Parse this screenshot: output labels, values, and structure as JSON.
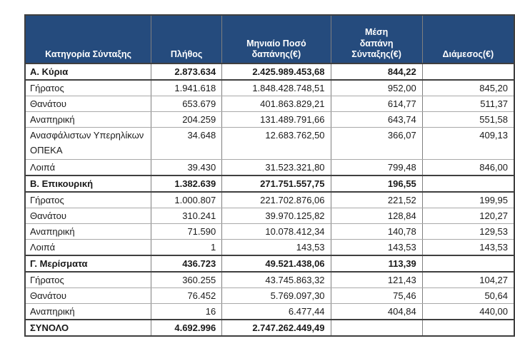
{
  "colors": {
    "header_bg": "#254b7d",
    "header_text": "#ffffff",
    "border_strong": "#3f3f3f"
  },
  "table": {
    "columns": [
      {
        "label": "Κατηγορία Σύνταξης"
      },
      {
        "label": "Πλήθος"
      },
      {
        "label": "Μηνιαίο Ποσό\nδαπάνης(€)"
      },
      {
        "label": "Μέση\nδαπάνη\nΣύνταξης(€)"
      },
      {
        "label": "Διάμεσος(€)"
      }
    ],
    "rows": [
      {
        "cells": [
          "Α. Κύρια",
          "2.873.634",
          "2.425.989.453,68",
          "844,22",
          ""
        ],
        "bold": true
      },
      {
        "cells": [
          "Γήρατος",
          "1.941.618",
          "1.848.428.748,51",
          "952,00",
          "845,20"
        ]
      },
      {
        "cells": [
          "Θανάτου",
          "653.679",
          "401.863.829,21",
          "614,77",
          "511,37"
        ]
      },
      {
        "cells": [
          "Αναπηρική",
          "204.259",
          "131.489.791,66",
          "643,74",
          "551,58"
        ]
      },
      {
        "cells": [
          "Ανασφάλιστων Υπερηλίκων ΟΠΕΚΑ",
          "34.648",
          "12.683.762,50",
          "366,07",
          "409,13"
        ],
        "tall": true
      },
      {
        "cells": [
          "Λοιπά",
          "39.430",
          "31.523.321,80",
          "799,48",
          "846,00"
        ]
      },
      {
        "cells": [
          "Β. Επικουρική",
          "1.382.639",
          "271.751.557,75",
          "196,55",
          ""
        ],
        "bold": true
      },
      {
        "cells": [
          "Γήρατος",
          "1.000.807",
          "221.702.876,06",
          "221,52",
          "199,95"
        ]
      },
      {
        "cells": [
          "Θανάτου",
          "310.241",
          "39.970.125,82",
          "128,84",
          "120,27"
        ]
      },
      {
        "cells": [
          "Αναπηρική",
          "71.590",
          "10.078.412,34",
          "140,78",
          "129,53"
        ]
      },
      {
        "cells": [
          "Λοιπά",
          "1",
          "143,53",
          "143,53",
          "143,53"
        ]
      },
      {
        "cells": [
          "Γ. Μερίσματα",
          "436.723",
          "49.521.438,06",
          "113,39",
          ""
        ],
        "bold": true
      },
      {
        "cells": [
          "Γήρατος",
          "360.255",
          "43.745.863,32",
          "121,43",
          "104,27"
        ]
      },
      {
        "cells": [
          "Θανάτου",
          "76.452",
          "5.769.097,30",
          "75,46",
          "50,64"
        ]
      },
      {
        "cells": [
          "Αναπηρική",
          "16",
          "6.477,44",
          "404,84",
          "440,00"
        ]
      },
      {
        "cells": [
          "ΣΥΝΟΛΟ",
          "4.692.996",
          "2.747.262.449,49",
          "",
          ""
        ],
        "bold": true
      }
    ]
  }
}
